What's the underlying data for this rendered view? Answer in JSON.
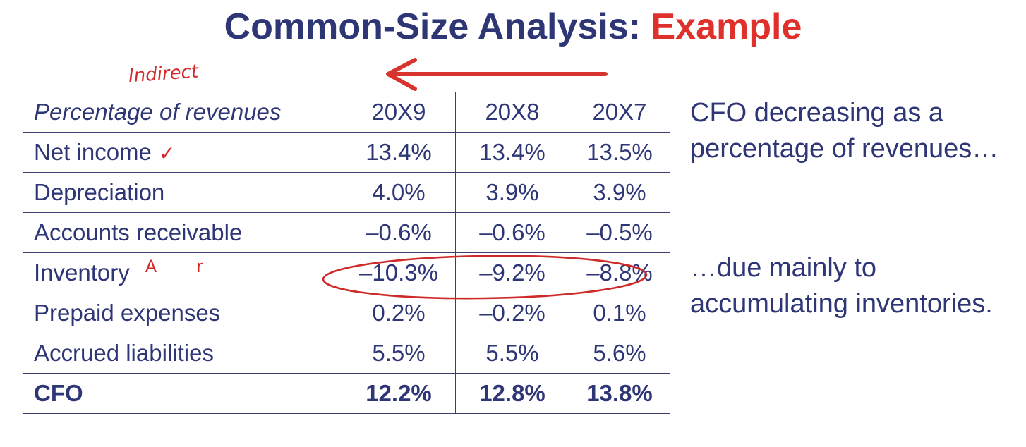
{
  "title": {
    "main": "Common-Size Analysis:",
    "accent": "Example"
  },
  "annotations": {
    "indirect": "Indirect",
    "tick": "✓",
    "mark_a": "A",
    "mark_up": "r"
  },
  "table": {
    "header": [
      "Percentage of revenues",
      "20X9",
      "20X8",
      "20X7"
    ],
    "rows": [
      {
        "label": "Net income",
        "values": [
          "13.4%",
          "13.4%",
          "13.5%"
        ]
      },
      {
        "label": "Depreciation",
        "values": [
          "4.0%",
          "3.9%",
          "3.9%"
        ]
      },
      {
        "label": "Accounts receivable",
        "values": [
          "–0.6%",
          "–0.6%",
          "–0.5%"
        ]
      },
      {
        "label": "Inventory",
        "values": [
          "–10.3%",
          "–9.2%",
          "–8.8%"
        ]
      },
      {
        "label": "Prepaid expenses",
        "values": [
          "0.2%",
          "–0.2%",
          "0.1%"
        ]
      },
      {
        "label": "Accrued liabilities",
        "values": [
          "5.5%",
          "5.5%",
          "5.6%"
        ]
      }
    ],
    "total": {
      "label": "CFO",
      "values": [
        "12.2%",
        "12.8%",
        "13.8%"
      ]
    }
  },
  "notes": {
    "first": "CFO decreasing as a percentage of revenues…",
    "second": "…due mainly to accumulating inventories."
  },
  "colors": {
    "navy": "#2e3676",
    "accent_red": "#e0302b",
    "ink_red": "#d42a2a"
  }
}
